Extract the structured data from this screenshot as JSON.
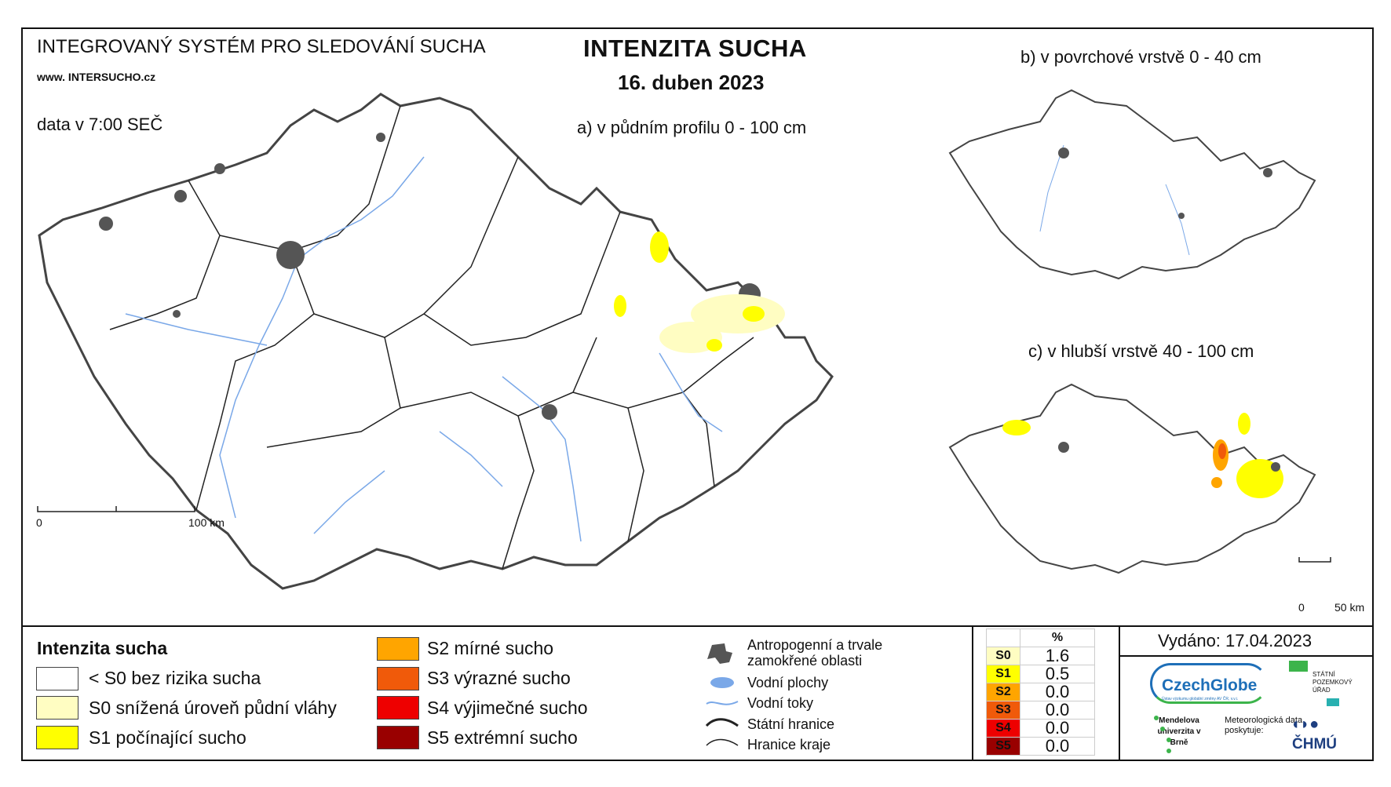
{
  "header": {
    "system_name": "INTEGROVANÝ SYSTÉM PRO SLEDOVÁNÍ SUCHA",
    "website": "www. INTERSUCHO.cz",
    "data_time": "data v 7:00 SEČ",
    "title": "INTENZITA SUCHA",
    "date": "16. duben 2023"
  },
  "maps": {
    "a_title": "a) v půdním profilu 0 - 100 cm",
    "b_title": "b) v povrchové vrstvě 0 - 40 cm",
    "c_title": "c) v hlubší vrstvě 40 - 100 cm",
    "main_scale": {
      "zero": "0",
      "end": "100 km"
    },
    "inset_scale": {
      "zero": "0",
      "end": "50 km"
    }
  },
  "legend": {
    "title": "Intenzita sucha",
    "items": [
      {
        "label": "< S0 bez rizika sucha",
        "color": "#ffffff"
      },
      {
        "label": "S0 snížená úroveň půdní vláhy",
        "color": "#fffdc2"
      },
      {
        "label": "S1 počínající sucho",
        "color": "#ffff00"
      },
      {
        "label": "S2 mírné sucho",
        "color": "#ffa500"
      },
      {
        "label": "S3 výrazné sucho",
        "color": "#f05a0a"
      },
      {
        "label": "S4 výjimečné sucho",
        "color": "#ee0000"
      },
      {
        "label": "S5 extrémní sucho",
        "color": "#990000"
      }
    ]
  },
  "symbols": {
    "urban": "Antropogenní a trvale zamokřené oblasti",
    "water_bodies": "Vodní plochy",
    "rivers": "Vodní toky",
    "state_border": "Státní hranice",
    "region_border": "Hranice kraje"
  },
  "stats": {
    "header": "%",
    "rows": [
      {
        "code": "S0",
        "value": "1.6",
        "color": "#fffdc2"
      },
      {
        "code": "S1",
        "value": "0.5",
        "color": "#ffff00"
      },
      {
        "code": "S2",
        "value": "0.0",
        "color": "#ffa500"
      },
      {
        "code": "S3",
        "value": "0.0",
        "color": "#f05a0a"
      },
      {
        "code": "S4",
        "value": "0.0",
        "color": "#ee0000"
      },
      {
        "code": "S5",
        "value": "0.0",
        "color": "#990000"
      }
    ]
  },
  "issued": "Vydáno: 17.04.2023",
  "logos": {
    "czechglobe": "CzechGlobe",
    "czechglobe_sub": "Ústav výzkumu globální změny AV ČR, v.v.i.",
    "spu": "STÁTNÍ POZEMKOVÝ ÚŘAD",
    "mendel": "Mendelova univerzita v Brně",
    "meteo": "Meteorologická data poskytuje:",
    "chmu": "ČHMÚ"
  },
  "colors": {
    "river": "#7aa8e8",
    "urban": "#555555",
    "accent_green": "#3cb44b",
    "czechglobe_blue": "#1e6fb8"
  }
}
